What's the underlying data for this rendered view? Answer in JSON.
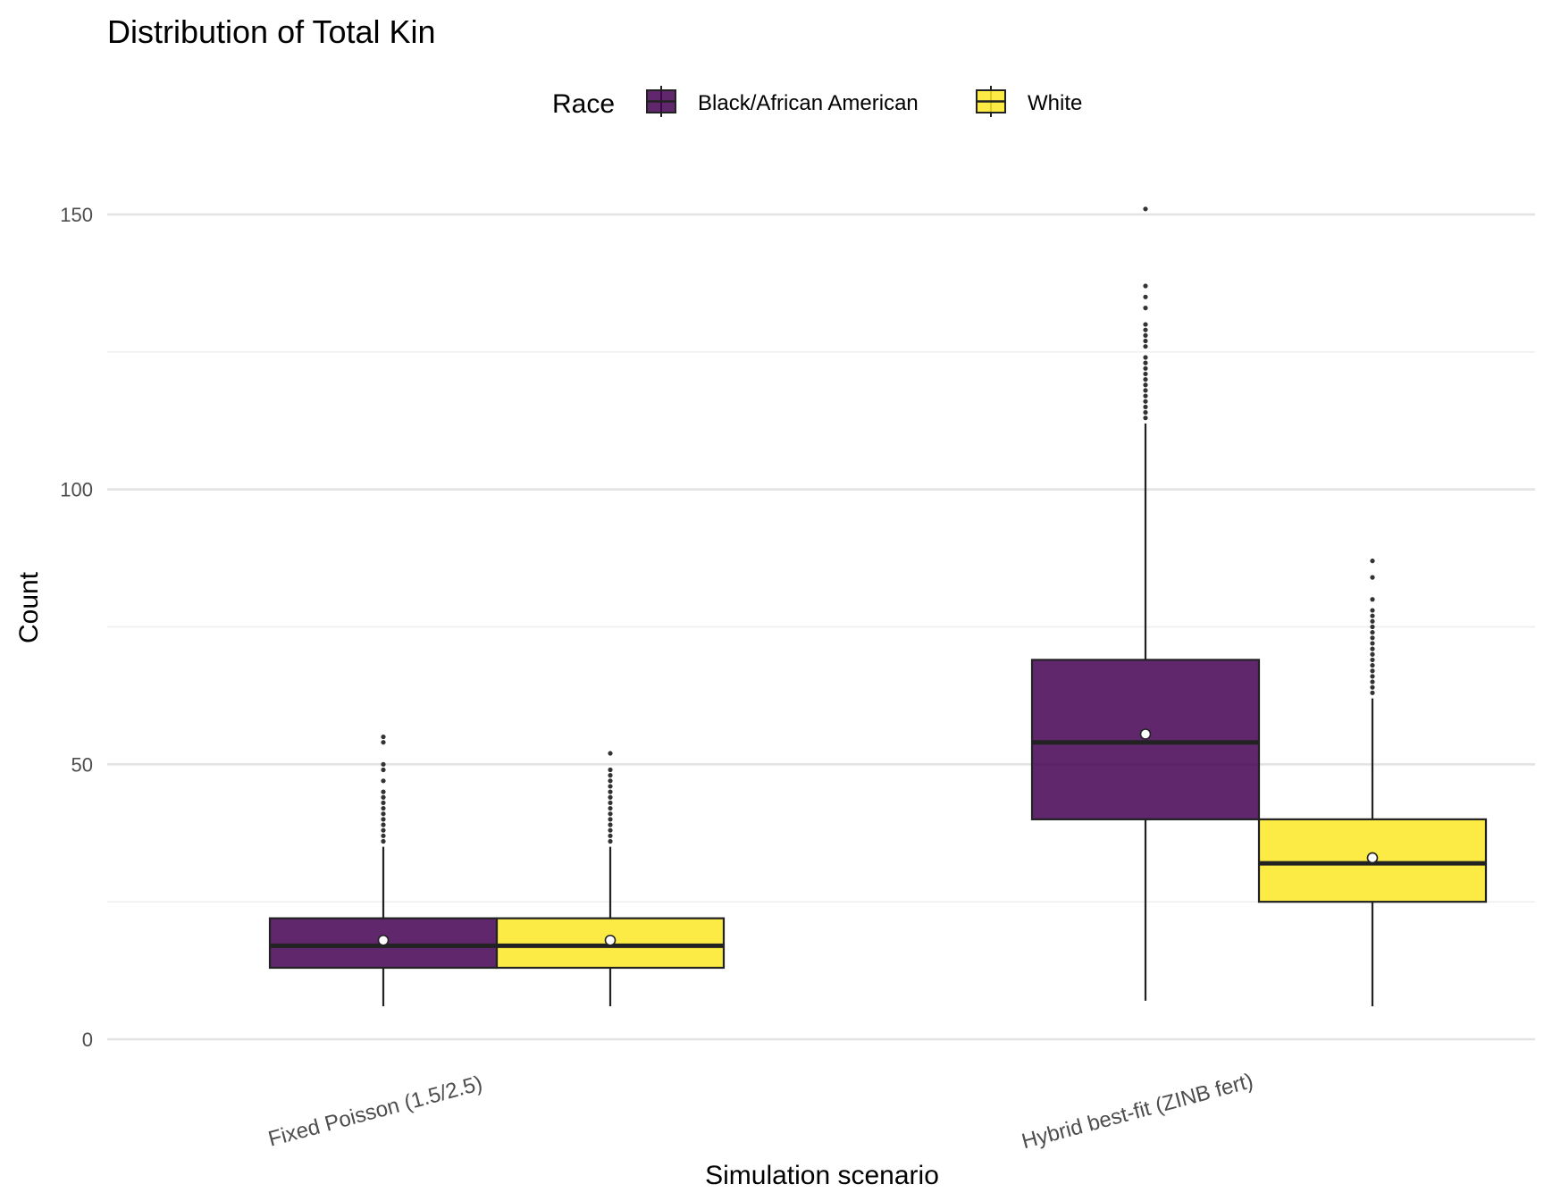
{
  "chart_data": {
    "type": "boxplot",
    "title": "Distribution of Total Kin",
    "xlabel": "Simulation scenario",
    "ylabel": "Count",
    "ylim": [
      -4,
      160
    ],
    "yticks": [
      0,
      50,
      100,
      150
    ],
    "yticks_minor": [
      25,
      75,
      125
    ],
    "grid": true,
    "legend": {
      "title": "Race",
      "position": "top",
      "entries": [
        {
          "name": "Black/African American",
          "color": "#440154"
        },
        {
          "name": "White",
          "color": "#FDE725"
        }
      ]
    },
    "categories": [
      "Fixed Poisson (1.5/2.5)",
      "Hybrid best-fit (ZINB fert)"
    ],
    "series": [
      {
        "name": "Black/African American",
        "color": "#440154",
        "boxes": [
          {
            "whisker_low": 6,
            "q1": 13,
            "median": 17,
            "q3": 22,
            "whisker_high": 35,
            "mean": 18,
            "outliers": [
              36,
              37,
              38,
              39,
              40,
              41,
              42,
              43,
              44,
              45,
              47,
              49,
              50,
              54,
              55
            ]
          },
          {
            "whisker_low": 7,
            "q1": 40,
            "median": 54,
            "q3": 69,
            "whisker_high": 112,
            "mean": 55.5,
            "outliers": [
              113,
              114,
              115,
              116,
              117,
              118,
              119,
              120,
              121,
              122,
              123,
              124,
              126,
              127,
              128,
              129,
              130,
              133,
              135,
              137,
              151
            ]
          }
        ]
      },
      {
        "name": "White",
        "color": "#FDE725",
        "boxes": [
          {
            "whisker_low": 6,
            "q1": 13,
            "median": 17,
            "q3": 22,
            "whisker_high": 35,
            "mean": 18,
            "outliers": [
              36,
              37,
              38,
              39,
              40,
              41,
              42,
              43,
              44,
              45,
              46,
              47,
              48,
              49,
              52
            ]
          },
          {
            "whisker_low": 6,
            "q1": 25,
            "median": 32,
            "q3": 40,
            "whisker_high": 62,
            "mean": 33,
            "outliers": [
              63,
              64,
              65,
              66,
              67,
              68,
              69,
              70,
              71,
              72,
              73,
              74,
              75,
              76,
              77,
              78,
              80,
              84,
              87
            ]
          }
        ]
      }
    ]
  }
}
